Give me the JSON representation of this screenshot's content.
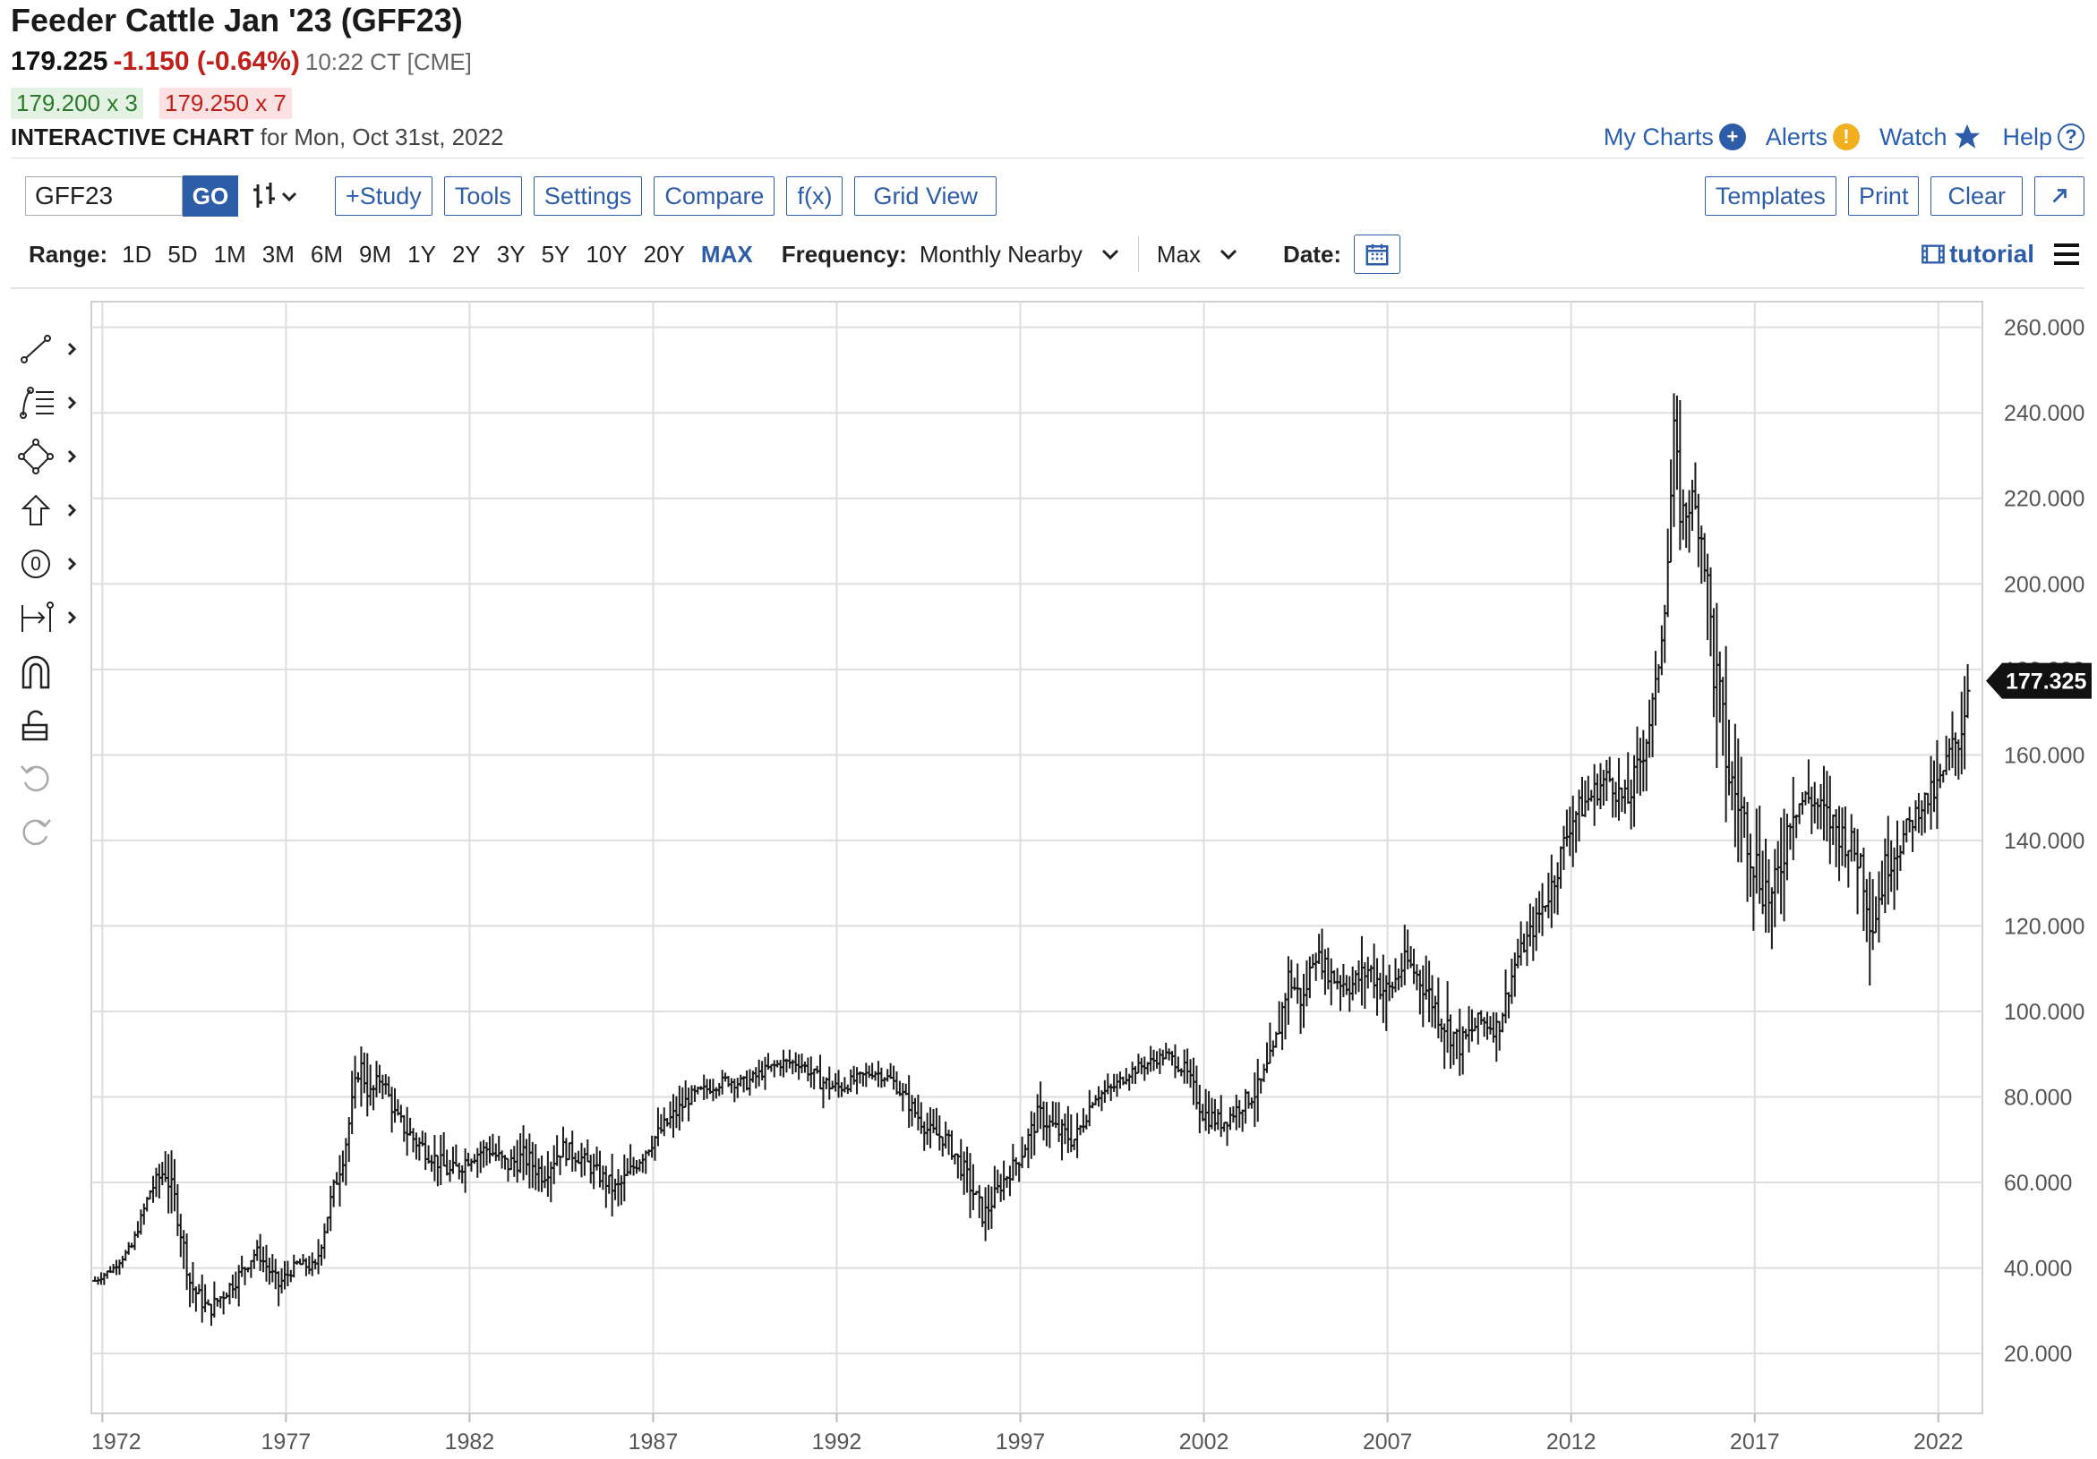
{
  "header": {
    "title": "Feeder Cattle Jan '23 (GFF23)",
    "last": "179.225",
    "change": "-1.150 (-0.64%)",
    "time": "10:22 CT [CME]",
    "bid": "179.200 x 3",
    "ask": "179.250 x 7",
    "chart_label": "INTERACTIVE CHART",
    "chart_date": "for Mon, Oct 31st, 2022"
  },
  "toplinks": {
    "my_charts": "My Charts",
    "alerts": "Alerts",
    "watch": "Watch",
    "help": "Help"
  },
  "toolbar": {
    "symbol_value": "GFF23",
    "go": "GO",
    "study": "+Study",
    "tools": "Tools",
    "settings": "Settings",
    "compare": "Compare",
    "fx": "f(x)",
    "grid_view": "Grid View",
    "templates": "Templates",
    "print": "Print",
    "clear": "Clear"
  },
  "range_bar": {
    "range_label": "Range:",
    "ranges": [
      "1D",
      "5D",
      "1M",
      "3M",
      "6M",
      "9M",
      "1Y",
      "2Y",
      "3Y",
      "5Y",
      "10Y",
      "20Y",
      "MAX"
    ],
    "active_range": "MAX",
    "frequency_label": "Frequency:",
    "frequency_value": "Monthly Nearby",
    "max_value": "Max",
    "date_label": "Date:",
    "tutorial": "tutorial"
  },
  "icons": {
    "left_toolbar": [
      "line-tool-icon",
      "fib-tool-icon",
      "shape-tool-icon",
      "arrow-tool-icon",
      "marker-tool-icon",
      "measure-tool-icon",
      "magnet-icon",
      "unlock-icon",
      "undo-icon",
      "redo-icon"
    ]
  },
  "colors": {
    "accent": "#2e5da8",
    "negative": "#c0201b",
    "positive": "#2b7a2b",
    "bars": "#1a1a1a"
  },
  "chart_data": {
    "type": "ohlc",
    "title": "",
    "xlabel": "",
    "ylabel": "",
    "ylim": [
      6,
      266
    ],
    "xlim": [
      1971.7,
      2023.2
    ],
    "y_ticks": [
      "20.000",
      "40.000",
      "60.000",
      "80.000",
      "100.000",
      "120.000",
      "140.000",
      "160.000",
      "180.000",
      "200.000",
      "220.000",
      "240.000",
      "260.000"
    ],
    "x_ticks": [
      "1972",
      "1977",
      "1982",
      "1987",
      "1992",
      "1997",
      "2002",
      "2007",
      "2012",
      "2017",
      "2022"
    ],
    "last_price_label": "177.325",
    "last_price": 177.325,
    "grid": true,
    "series": [
      {
        "x": [
          1971.8,
          1972.3,
          1972.8,
          1973.3,
          1973.7,
          1974.0,
          1974.4,
          1974.9,
          1975.3,
          1975.7,
          1976.2,
          1976.8,
          1977.3,
          1977.8,
          1978.2,
          1978.6,
          1979.0,
          1979.3,
          1979.6,
          1980.0,
          1980.5,
          1981.0,
          1981.5,
          1982.0,
          1982.5,
          1983.0,
          1983.5,
          1984.0,
          1984.5,
          1985.0,
          1985.5,
          1986.0,
          1986.5,
          1987.0,
          1987.5,
          1988.0,
          1988.5,
          1989.0,
          1989.5,
          1990.0,
          1990.5,
          1991.0,
          1991.5,
          1992.0,
          1992.5,
          1993.0,
          1993.5,
          1994.0,
          1994.5,
          1995.0,
          1995.5,
          1996.0,
          1996.5,
          1997.0,
          1997.5,
          1998.0,
          1998.5,
          1999.0,
          1999.5,
          2000.0,
          2000.5,
          2001.0,
          2001.5,
          2002.0,
          2002.5,
          2003.0,
          2003.5,
          2003.9,
          2004.3,
          2004.7,
          2005.0,
          2005.5,
          2006.0,
          2006.5,
          2007.0,
          2007.5,
          2008.0,
          2008.5,
          2009.0,
          2009.5,
          2010.0,
          2010.5,
          2011.0,
          2011.5,
          2012.0,
          2012.5,
          2013.0,
          2013.5,
          2014.0,
          2014.3,
          2014.6,
          2014.8,
          2015.0,
          2015.3,
          2015.6,
          2015.9,
          2016.3,
          2016.7,
          2017.0,
          2017.5,
          2018.0,
          2018.5,
          2019.0,
          2019.5,
          2019.9,
          2020.2,
          2020.6,
          2021.0,
          2021.5,
          2022.0,
          2022.3,
          2022.6,
          2022.83
        ],
        "close": [
          37,
          40,
          45,
          58,
          63,
          55,
          36,
          30,
          34,
          38,
          44,
          36,
          41,
          40,
          55,
          68,
          88,
          80,
          85,
          75,
          70,
          66,
          62,
          66,
          68,
          64,
          66,
          62,
          68,
          66,
          62,
          58,
          64,
          70,
          75,
          80,
          82,
          84,
          83,
          86,
          88,
          88,
          84,
          82,
          84,
          86,
          84,
          78,
          72,
          70,
          62,
          52,
          60,
          66,
          76,
          72,
          70,
          80,
          82,
          86,
          88,
          90,
          86,
          76,
          74,
          78,
          82,
          90,
          108,
          102,
          114,
          108,
          106,
          110,
          104,
          112,
          106,
          98,
          92,
          98,
          96,
          112,
          120,
          130,
          145,
          150,
          155,
          148,
          162,
          175,
          200,
          235,
          215,
          220,
          210,
          180,
          155,
          145,
          135,
          125,
          148,
          150,
          145,
          140,
          135,
          120,
          135,
          140,
          148,
          152,
          160,
          165,
          177.325
        ],
        "high": [
          39,
          42,
          48,
          62,
          72,
          64,
          43,
          36,
          40,
          44,
          48,
          42,
          44,
          45,
          62,
          76,
          96,
          90,
          90,
          82,
          78,
          72,
          70,
          72,
          74,
          72,
          74,
          70,
          75,
          72,
          68,
          66,
          70,
          76,
          82,
          85,
          86,
          88,
          88,
          90,
          92,
          92,
          90,
          88,
          88,
          90,
          88,
          84,
          78,
          76,
          70,
          60,
          66,
          72,
          84,
          80,
          78,
          84,
          86,
          90,
          92,
          93,
          92,
          84,
          80,
          84,
          90,
          100,
          118,
          112,
          120,
          116,
          114,
          120,
          116,
          120,
          116,
          110,
          102,
          104,
          104,
          118,
          128,
          140,
          155,
          160,
          162,
          160,
          172,
          185,
          210,
          247,
          232,
          228,
          225,
          210,
          175,
          160,
          155,
          145,
          162,
          160,
          158,
          152,
          150,
          136,
          148,
          150,
          155,
          165,
          170,
          180,
          186
        ]
      }
    ]
  }
}
